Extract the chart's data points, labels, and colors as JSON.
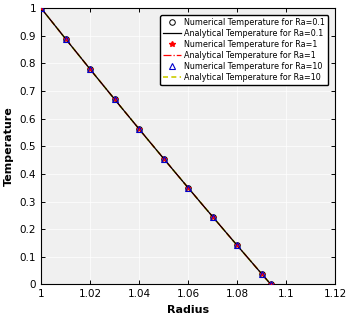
{
  "title": "",
  "xlabel": "Radius",
  "ylabel": "Temperature",
  "xlim": [
    1.0,
    1.12
  ],
  "ylim": [
    0.0,
    1.0
  ],
  "xticks": [
    1.0,
    1.02,
    1.04,
    1.06,
    1.08,
    1.1,
    1.12
  ],
  "yticks": [
    0.0,
    0.1,
    0.2,
    0.3,
    0.4,
    0.5,
    0.6,
    0.7,
    0.8,
    0.9,
    1.0
  ],
  "R_inner": 1.0,
  "R_outer": 1.09375,
  "num_points_curve": 300,
  "scatter_radii": [
    1.0,
    1.01,
    1.02,
    1.03,
    1.04,
    1.05,
    1.06,
    1.07,
    1.08,
    1.09,
    1.09375
  ],
  "legend_entries": [
    "Numerical Temperature for Ra=0.1",
    "Analytical Temperature for Ra=0.1",
    "Numerical Temperature for Ra=1",
    "Analytical Temperature for Ra=1",
    "Numerical Temperature for Ra=10",
    "Analytical Temperature for Ra=10"
  ],
  "colors": {
    "Ra01_numerical": "#000000",
    "Ra01_analytical": "#000000",
    "Ra1_numerical": "#ff0000",
    "Ra1_analytical": "#ff0000",
    "Ra10_numerical": "#0000cc",
    "Ra10_analytical": "#cccc00"
  },
  "axes_facecolor": "#f0f0f0",
  "background_color": "#ffffff",
  "figsize": [
    3.51,
    3.19
  ],
  "dpi": 100,
  "fontsize_labels": 8,
  "fontsize_ticks": 7.5,
  "fontsize_legend": 5.8
}
